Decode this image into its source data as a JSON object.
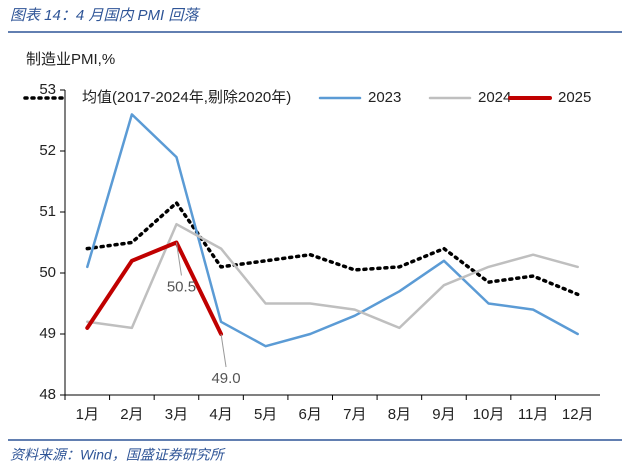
{
  "chart_data": {
    "type": "line",
    "title": "图表 14：4 月国内 PMI 回落",
    "y_label": "制造业PMI,%",
    "source": "资料来源：Wind，国盛证券研究所",
    "categories": [
      "1月",
      "2月",
      "3月",
      "4月",
      "5月",
      "6月",
      "7月",
      "8月",
      "9月",
      "10月",
      "11月",
      "12月"
    ],
    "ylim": [
      48,
      53
    ],
    "yticks": [
      48,
      49,
      50,
      51,
      52,
      53
    ],
    "legend": "top",
    "series": [
      {
        "name": "均值(2017-2024年,剔除2020年)",
        "color": "#000000",
        "line_style": "dotted",
        "values": [
          50.4,
          50.5,
          51.15,
          50.1,
          50.2,
          50.3,
          50.05,
          50.1,
          50.4,
          49.85,
          49.95,
          49.65
        ]
      },
      {
        "name": "2023",
        "color": "#5b9bd5",
        "line_style": "solid",
        "values": [
          50.1,
          52.6,
          51.9,
          49.2,
          48.8,
          49.0,
          49.3,
          49.7,
          50.2,
          49.5,
          49.4,
          49.0
        ]
      },
      {
        "name": "2024",
        "color": "#bfbfbf",
        "line_style": "solid",
        "values": [
          49.2,
          49.1,
          50.8,
          50.4,
          49.5,
          49.5,
          49.4,
          49.1,
          49.8,
          50.1,
          50.3,
          50.1
        ]
      },
      {
        "name": "2025",
        "color": "#c00000",
        "line_style": "solid",
        "values": [
          49.1,
          50.2,
          50.5,
          49.0,
          null,
          null,
          null,
          null,
          null,
          null,
          null,
          null
        ],
        "value_labels": [
          null,
          null,
          "50.5",
          "49.0",
          null,
          null,
          null,
          null,
          null,
          null,
          null,
          null
        ]
      }
    ]
  }
}
